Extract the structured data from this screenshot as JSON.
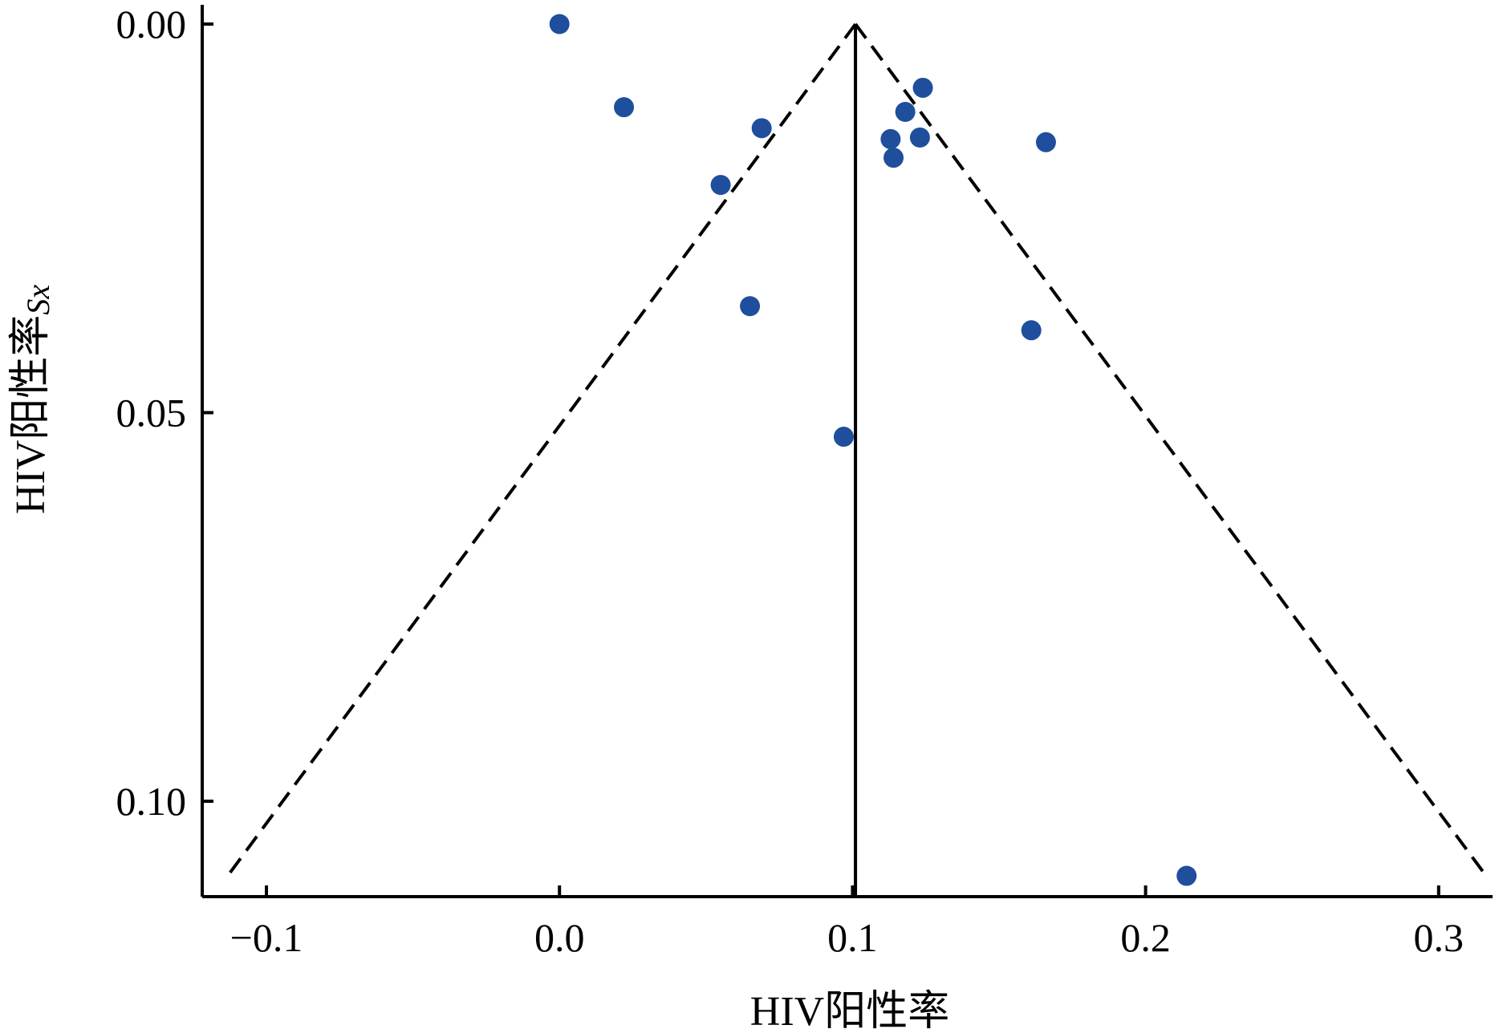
{
  "chart_data": {
    "type": "scatter",
    "title": "",
    "xlabel": "HIV阳性率",
    "ylabel": "HIV阳性率",
    "ylabel_subscript": "Sx",
    "xlim": [
      -0.115,
      0.318
    ],
    "ylim": [
      0.0,
      0.1125
    ],
    "y_axis_inverted": true,
    "grid": false,
    "x_ticks": [
      {
        "value": -0.1,
        "label": "−0.1"
      },
      {
        "value": 0.0,
        "label": "0.0"
      },
      {
        "value": 0.1,
        "label": "0.1"
      },
      {
        "value": 0.2,
        "label": "0.2"
      },
      {
        "value": 0.3,
        "label": "0.3"
      }
    ],
    "y_ticks": [
      {
        "value": 0.0,
        "label": "0.00"
      },
      {
        "value": 0.05,
        "label": "0.05"
      },
      {
        "value": 0.1,
        "label": "0.10"
      }
    ],
    "pooled_estimate": 0.101,
    "funnel_lines": {
      "apex": [
        0.101,
        0.0
      ],
      "left_end": [
        -0.113,
        0.1095
      ],
      "right_end": [
        0.316,
        0.1095
      ],
      "style": "dashed"
    },
    "center_line": {
      "x": 0.101,
      "y_from": 0.0,
      "y_to": 0.1125,
      "style": "solid"
    },
    "marker_color": "#1F4E9C",
    "points": [
      {
        "x": 0.0,
        "y": 0.0
      },
      {
        "x": 0.022,
        "y": 0.0107
      },
      {
        "x": 0.069,
        "y": 0.0134
      },
      {
        "x": 0.055,
        "y": 0.0207
      },
      {
        "x": 0.065,
        "y": 0.0363
      },
      {
        "x": 0.097,
        "y": 0.0531
      },
      {
        "x": 0.113,
        "y": 0.0148
      },
      {
        "x": 0.114,
        "y": 0.0172
      },
      {
        "x": 0.118,
        "y": 0.0113
      },
      {
        "x": 0.123,
        "y": 0.0146
      },
      {
        "x": 0.124,
        "y": 0.0082
      },
      {
        "x": 0.166,
        "y": 0.0152
      },
      {
        "x": 0.161,
        "y": 0.0394
      },
      {
        "x": 0.214,
        "y": 0.1096
      }
    ]
  }
}
